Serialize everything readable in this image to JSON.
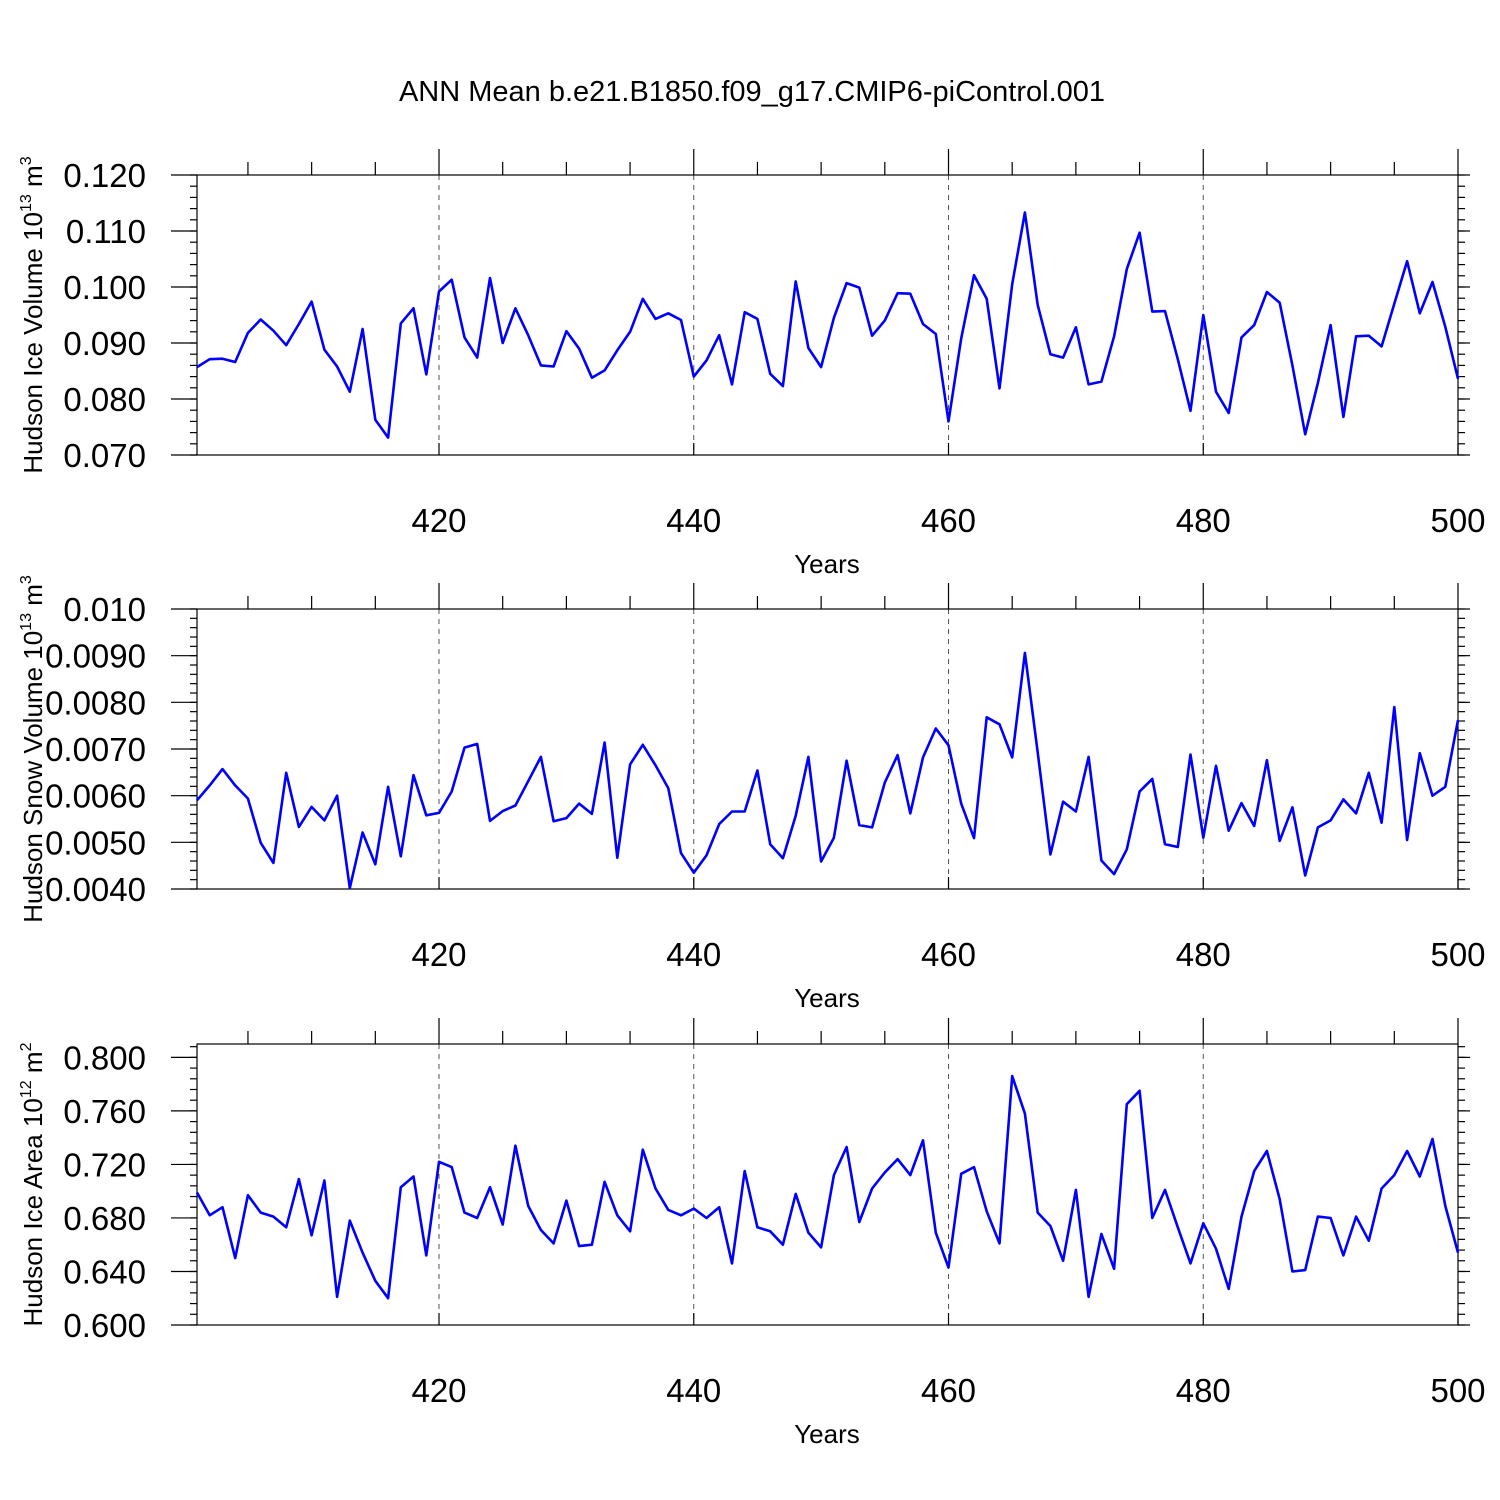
{
  "title": "ANN Mean b.e21.B1850.f09_g17.CMIP6-piControl.001",
  "colors": {
    "line": "#0000ff",
    "axis": "#000000",
    "grid": "#555555"
  },
  "chart_data": [
    {
      "type": "line",
      "xlabel": "Years",
      "ylabel": {
        "text": "Hudson Ice Volume 10",
        "sup": "13",
        "unit": " m",
        "unit_sup": "3"
      },
      "xlim": [
        401,
        500
      ],
      "ylim": [
        0.07,
        0.12
      ],
      "xticks": [
        420,
        440,
        460,
        480,
        500
      ],
      "xtick_labels": [
        "420",
        "440",
        "460",
        "480",
        "500"
      ],
      "yticks": [
        0.07,
        0.08,
        0.09,
        0.1,
        0.11,
        0.12
      ],
      "ytick_labels": [
        "0.070",
        "0.080",
        "0.090",
        "0.100",
        "0.110",
        "0.120"
      ],
      "grid": "vertical dashed at major x ticks",
      "x_start": 401,
      "values": [
        0.0857,
        0.0871,
        0.0872,
        0.0866,
        0.0918,
        0.0942,
        0.0922,
        0.0896,
        0.0934,
        0.0974,
        0.0888,
        0.0858,
        0.0813,
        0.0925,
        0.0763,
        0.0731,
        0.0935,
        0.0962,
        0.0844,
        0.0992,
        0.1013,
        0.091,
        0.0874,
        0.1016,
        0.09,
        0.0962,
        0.0914,
        0.086,
        0.0858,
        0.0921,
        0.089,
        0.0838,
        0.0851,
        0.0887,
        0.092,
        0.0979,
        0.0943,
        0.0953,
        0.0941,
        0.084,
        0.0869,
        0.0914,
        0.0826,
        0.0955,
        0.0943,
        0.0845,
        0.0823,
        0.101,
        0.0891,
        0.0857,
        0.0945,
        0.1007,
        0.0999,
        0.0913,
        0.094,
        0.0989,
        0.0988,
        0.0934,
        0.0916,
        0.076,
        0.0908,
        0.1021,
        0.0979,
        0.0819,
        0.1005,
        0.1133,
        0.0968,
        0.088,
        0.0874,
        0.0928,
        0.0826,
        0.0831,
        0.0912,
        0.1032,
        0.1097,
        0.0956,
        0.0957,
        0.0871,
        0.0779,
        0.095,
        0.0813,
        0.0775,
        0.091,
        0.0932,
        0.0991,
        0.0972,
        0.086,
        0.0737,
        0.0829,
        0.0932,
        0.0768,
        0.0912,
        0.0913,
        0.0894,
        0.097,
        0.1046,
        0.0953,
        0.1009,
        0.0929,
        0.0836
      ]
    },
    {
      "type": "line",
      "xlabel": "Years",
      "ylabel": {
        "text": "Hudson Snow Volume 10",
        "sup": "13",
        "unit": " m",
        "unit_sup": "3"
      },
      "xlim": [
        401,
        500
      ],
      "ylim": [
        0.004,
        0.01
      ],
      "xticks": [
        420,
        440,
        460,
        480,
        500
      ],
      "xtick_labels": [
        "420",
        "440",
        "460",
        "480",
        "500"
      ],
      "yticks": [
        0.004,
        0.005,
        0.006,
        0.007,
        0.008,
        0.009,
        0.01
      ],
      "ytick_labels": [
        "0.0040",
        "0.0050",
        "0.0060",
        "0.0070",
        "0.0080",
        "0.0090",
        "0.010"
      ],
      "grid": "vertical dashed at major x ticks",
      "x_start": 401,
      "values": [
        0.0059,
        0.00622,
        0.00657,
        0.00622,
        0.00594,
        0.00499,
        0.00456,
        0.00649,
        0.00533,
        0.00576,
        0.00547,
        0.006,
        0.00402,
        0.00521,
        0.00453,
        0.00619,
        0.0047,
        0.00644,
        0.00558,
        0.00563,
        0.00609,
        0.00703,
        0.00711,
        0.00546,
        0.00567,
        0.00579,
        0.00631,
        0.00683,
        0.00545,
        0.00552,
        0.00583,
        0.00561,
        0.00714,
        0.00467,
        0.00667,
        0.00709,
        0.00665,
        0.00616,
        0.00477,
        0.00435,
        0.00472,
        0.00539,
        0.00566,
        0.00566,
        0.00654,
        0.00496,
        0.00466,
        0.00557,
        0.00683,
        0.00459,
        0.0051,
        0.00675,
        0.00537,
        0.00532,
        0.00628,
        0.00687,
        0.00562,
        0.00682,
        0.00744,
        0.00708,
        0.00583,
        0.00509,
        0.00768,
        0.00753,
        0.00682,
        0.00906,
        0.00693,
        0.00474,
        0.00587,
        0.00566,
        0.00683,
        0.00461,
        0.00432,
        0.00485,
        0.00609,
        0.00636,
        0.00496,
        0.0049,
        0.00688,
        0.0051,
        0.00664,
        0.00525,
        0.00584,
        0.00535,
        0.00676,
        0.00503,
        0.00575,
        0.00429,
        0.00532,
        0.00547,
        0.00592,
        0.00562,
        0.00649,
        0.00542,
        0.0079,
        0.00505,
        0.00691,
        0.006,
        0.00619,
        0.00762
      ]
    },
    {
      "type": "line",
      "xlabel": "Years",
      "ylabel": {
        "text": "Hudson Ice Area 10",
        "sup": "12",
        "unit": " m",
        "unit_sup": "2"
      },
      "xlim": [
        401,
        500
      ],
      "ylim": [
        0.6,
        0.81
      ],
      "xticks": [
        420,
        440,
        460,
        480,
        500
      ],
      "xtick_labels": [
        "420",
        "440",
        "460",
        "480",
        "500"
      ],
      "yticks": [
        0.6,
        0.64,
        0.68,
        0.72,
        0.76,
        0.8
      ],
      "ytick_labels": [
        "0.600",
        "0.640",
        "0.680",
        "0.720",
        "0.760",
        "0.800"
      ],
      "grid": "vertical dashed at major x ticks",
      "x_start": 401,
      "values": [
        0.699,
        0.682,
        0.688,
        0.65,
        0.697,
        0.684,
        0.681,
        0.673,
        0.709,
        0.667,
        0.708,
        0.621,
        0.678,
        0.654,
        0.633,
        0.62,
        0.703,
        0.711,
        0.652,
        0.722,
        0.718,
        0.684,
        0.68,
        0.703,
        0.675,
        0.734,
        0.689,
        0.671,
        0.661,
        0.693,
        0.659,
        0.66,
        0.707,
        0.682,
        0.67,
        0.731,
        0.702,
        0.686,
        0.682,
        0.687,
        0.68,
        0.688,
        0.646,
        0.715,
        0.673,
        0.67,
        0.66,
        0.698,
        0.669,
        0.658,
        0.712,
        0.733,
        0.677,
        0.702,
        0.714,
        0.724,
        0.712,
        0.738,
        0.669,
        0.643,
        0.713,
        0.718,
        0.685,
        0.661,
        0.786,
        0.758,
        0.684,
        0.674,
        0.648,
        0.701,
        0.621,
        0.668,
        0.642,
        0.765,
        0.775,
        0.68,
        0.701,
        0.673,
        0.646,
        0.676,
        0.657,
        0.627,
        0.681,
        0.715,
        0.73,
        0.694,
        0.64,
        0.641,
        0.681,
        0.68,
        0.652,
        0.681,
        0.663,
        0.702,
        0.712,
        0.73,
        0.711,
        0.739,
        0.689,
        0.654
      ]
    }
  ]
}
